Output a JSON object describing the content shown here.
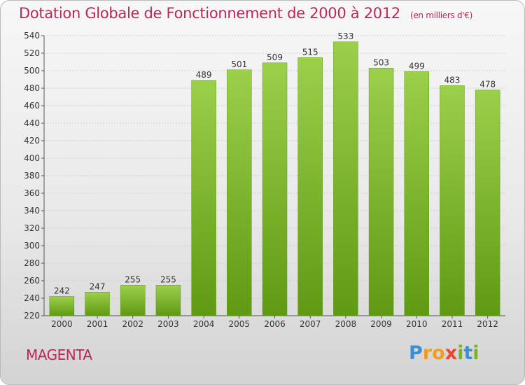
{
  "header": {
    "title": "Dotation Globale de Fonctionnement de 2000 à 2012",
    "unit_note": "(en milliers d'€)"
  },
  "footer": {
    "commune": "MAGENTA",
    "logo_letters": [
      "P",
      "r",
      "o",
      "x",
      "i",
      "t",
      "i"
    ],
    "logo_colors": [
      "#3a8fd9",
      "#f29c1f",
      "#f29c1f",
      "#e9452f",
      "#7ab51d",
      "#3a8fd9",
      "#7ab51d"
    ]
  },
  "chart_data": {
    "type": "bar",
    "categories": [
      "2000",
      "2001",
      "2002",
      "2003",
      "2004",
      "2005",
      "2006",
      "2007",
      "2008",
      "2009",
      "2010",
      "2011",
      "2012"
    ],
    "values": [
      242,
      247,
      255,
      255,
      489,
      501,
      509,
      515,
      533,
      503,
      499,
      483,
      478
    ],
    "ylim": [
      220,
      540
    ],
    "yticks": [
      220,
      240,
      260,
      280,
      300,
      320,
      340,
      360,
      380,
      400,
      420,
      440,
      460,
      480,
      500,
      520,
      540
    ],
    "grid": true,
    "bar_color_top": "#9ccf4a",
    "bar_color_bottom": "#5f9a12"
  }
}
